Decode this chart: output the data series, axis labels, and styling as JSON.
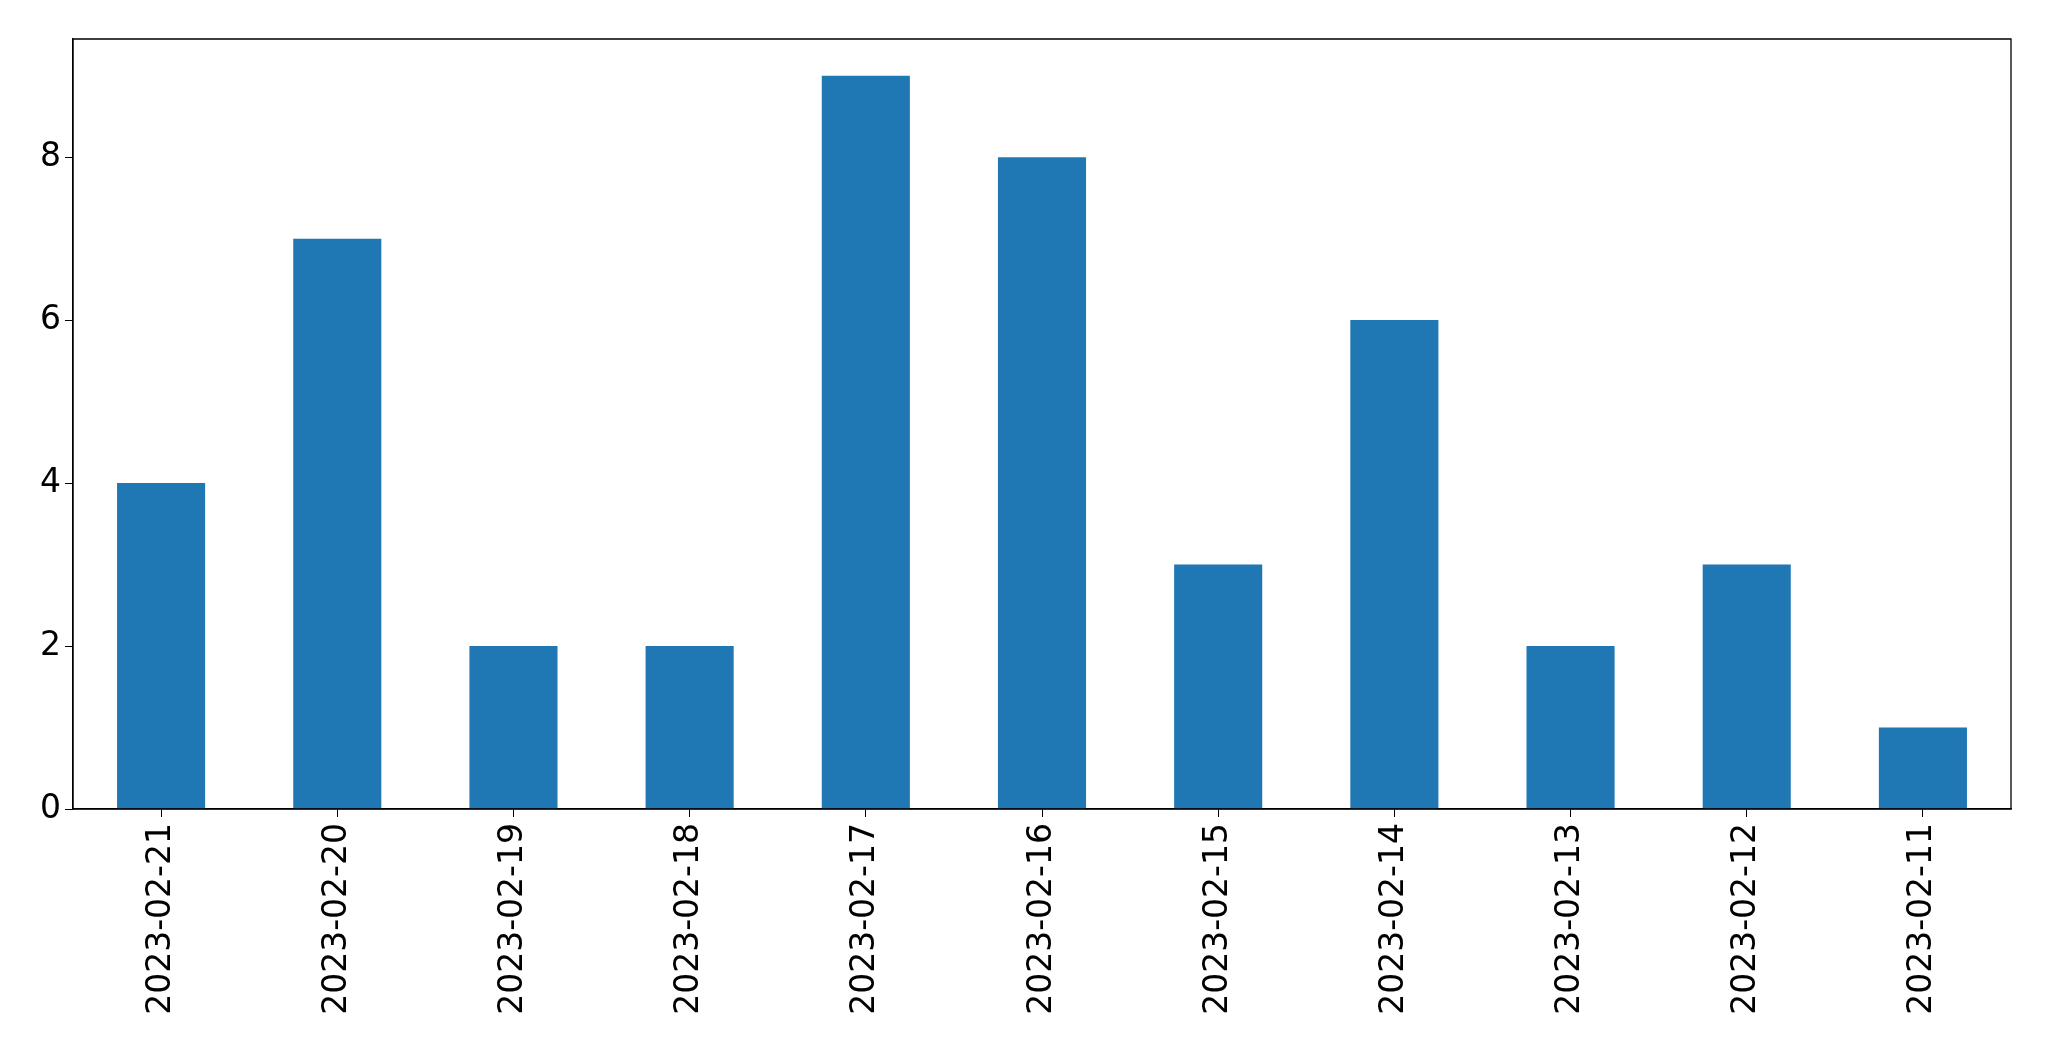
{
  "chart_data": {
    "type": "bar",
    "categories": [
      "2023-02-21",
      "2023-02-20",
      "2023-02-19",
      "2023-02-18",
      "2023-02-17",
      "2023-02-16",
      "2023-02-15",
      "2023-02-14",
      "2023-02-13",
      "2023-02-12",
      "2023-02-11"
    ],
    "values": [
      4,
      7,
      2,
      2,
      9,
      8,
      3,
      6,
      2,
      3,
      1
    ],
    "color": "#1f77b4",
    "ylim": [
      0,
      9.45
    ],
    "yticks": [
      0,
      2,
      4,
      6,
      8
    ],
    "grid": false,
    "legend": false
  }
}
